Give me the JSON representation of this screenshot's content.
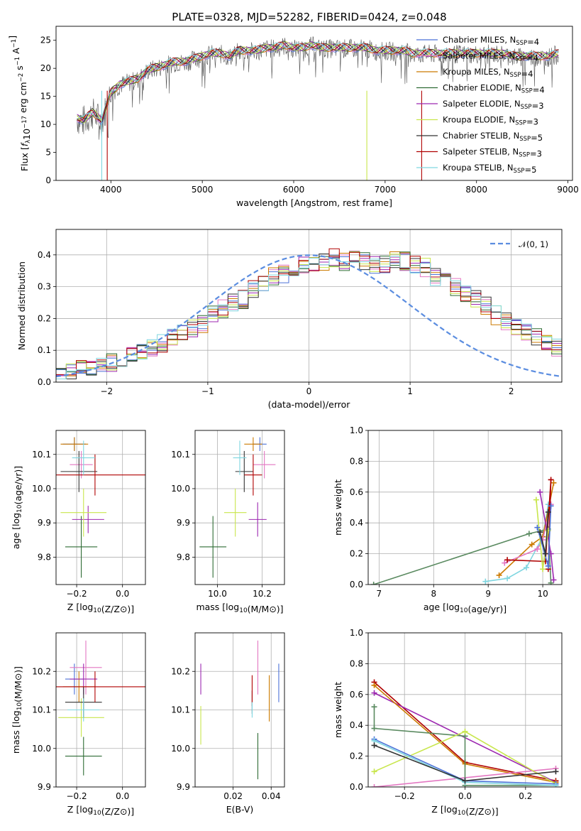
{
  "figure": {
    "title": "PLATE=0328, MJD=52282, FIBERID=0424, z=0.048"
  },
  "colors": {
    "Chabrier MILES": "#4c72d8",
    "Salpeter MILES": "#e377c2",
    "Kroupa MILES": "#cc7a00",
    "Chabrier ELODIE": "#2e6b34",
    "Salpeter ELODIE": "#9c27b0",
    "Kroupa ELODIE": "#c8e64c",
    "Chabrier STELIB": "#333333",
    "Salpeter STELIB": "#b00000",
    "Kroupa STELIB": "#7fd6e0",
    "normal": "#5b8de0",
    "green_path": "#5a8a60"
  },
  "chart_data": [
    {
      "id": "spectrum",
      "type": "line",
      "xlabel": "wavelength [Angstrom, rest frame]",
      "ylabel": "Flux [fλ10⁻¹⁷ erg cm⁻² s⁻¹ A⁻¹]",
      "xlim": [
        3400,
        9050
      ],
      "ylim": [
        0,
        27.5
      ],
      "xticks": [
        4000,
        5000,
        6000,
        7000,
        8000,
        9000
      ],
      "yticks": [
        0,
        5,
        10,
        15,
        20,
        25
      ],
      "legend_position": "top-right",
      "x": [
        3630,
        3700,
        3800,
        3900,
        3960,
        4000,
        4100,
        4200,
        4300,
        4400,
        4500,
        4600,
        4700,
        4800,
        4900,
        5000,
        5100,
        5200,
        5300,
        5400,
        5500,
        5600,
        5700,
        5800,
        5900,
        6000,
        6100,
        6200,
        6300,
        6400,
        6500,
        6600,
        6700,
        6800,
        6900,
        7000,
        7100,
        7200,
        7300,
        7400,
        7500,
        7600,
        7700,
        7800,
        7900,
        8000,
        8100,
        8200,
        8300,
        8400,
        8500,
        8600,
        8700,
        8800,
        8900
      ],
      "series": [
        {
          "name": "Chabrier MILES, N_SSP=4"
        },
        {
          "name": "Salpeter MILES, N_SSP=4"
        },
        {
          "name": "Kroupa MILES, N_SSP=4"
        },
        {
          "name": "Chabrier ELODIE, N_SSP=4"
        },
        {
          "name": "Salpeter ELODIE, N_SSP=3"
        },
        {
          "name": "Kroupa ELODIE, N_SSP=3"
        },
        {
          "name": "Chabrier STELIB, N_SSP=5"
        },
        {
          "name": "Salpeter STELIB, N_SSP=3"
        },
        {
          "name": "Kroupa STELIB, N_SSP=5"
        }
      ],
      "model_values": [
        11.0,
        10.5,
        12.0,
        10.5,
        13.5,
        15.5,
        17.0,
        17.5,
        18.0,
        19.5,
        20.0,
        20.5,
        21.0,
        21.0,
        21.5,
        22.0,
        22.5,
        22.5,
        22.0,
        23.0,
        23.0,
        23.0,
        23.5,
        23.5,
        24.0,
        23.5,
        23.5,
        24.0,
        23.5,
        23.5,
        23.5,
        23.5,
        23.5,
        23.5,
        23.0,
        23.0,
        23.0,
        23.0,
        22.5,
        22.5,
        22.5,
        22.5,
        22.5,
        22.5,
        22.5,
        22.5,
        22.5,
        22.5,
        22.5,
        22.0,
        22.0,
        22.0,
        22.0,
        22.0,
        22.5
      ]
    },
    {
      "id": "residuals",
      "type": "bar",
      "xlabel": "(data-model)/error",
      "ylabel": "Normed distribution",
      "xlim": [
        -2.5,
        2.5
      ],
      "ylim": [
        0,
        0.48
      ],
      "xticks": [
        -2,
        -1,
        0,
        1,
        2
      ],
      "yticks": [
        0.0,
        0.1,
        0.2,
        0.3,
        0.4
      ],
      "grid": true,
      "legend": "𝒩(0, 1)",
      "legend_position": "top-right",
      "bin_width": 0.1,
      "bin_start": -2.5,
      "hist_values": [
        0.03,
        0.03,
        0.04,
        0.05,
        0.05,
        0.06,
        0.07,
        0.08,
        0.1,
        0.11,
        0.12,
        0.14,
        0.15,
        0.17,
        0.18,
        0.21,
        0.23,
        0.25,
        0.26,
        0.29,
        0.31,
        0.33,
        0.34,
        0.36,
        0.37,
        0.37,
        0.38,
        0.39,
        0.38,
        0.39,
        0.38,
        0.37,
        0.37,
        0.38,
        0.38,
        0.37,
        0.36,
        0.33,
        0.32,
        0.3,
        0.28,
        0.26,
        0.24,
        0.21,
        0.19,
        0.17,
        0.16,
        0.14,
        0.12,
        0.11
      ]
    },
    {
      "id": "age-vs-Z",
      "type": "scatter",
      "xlabel": "Z [log10(Z/Z⊙)]",
      "ylabel": "age  [log10(age/yr)]",
      "xlim": [
        -0.29,
        0.1
      ],
      "ylim": [
        9.72,
        10.17
      ],
      "xticks": [
        -0.2,
        0.0
      ],
      "yticks": [
        9.8,
        9.9,
        10.0,
        10.1
      ],
      "grid": true,
      "points": [
        {
          "s": 0,
          "x": -0.21,
          "y": 10.13,
          "xerr": 0.05,
          "yerr": 0.02
        },
        {
          "s": 1,
          "x": -0.18,
          "y": 10.07,
          "xerr": 0.05,
          "yerr": 0.04
        },
        {
          "s": 2,
          "x": -0.21,
          "y": 10.13,
          "xerr": 0.06,
          "yerr": 0.02
        },
        {
          "s": 3,
          "x": -0.18,
          "y": 9.83,
          "xerr": 0.07,
          "yerr": 0.09
        },
        {
          "s": 4,
          "x": -0.15,
          "y": 9.91,
          "xerr": 0.07,
          "yerr": 0.04
        },
        {
          "s": 5,
          "x": -0.17,
          "y": 9.93,
          "xerr": 0.1,
          "yerr": 0.07
        },
        {
          "s": 6,
          "x": -0.19,
          "y": 10.05,
          "xerr": 0.08,
          "yerr": 0.06
        },
        {
          "s": 7,
          "x": -0.12,
          "y": 10.04,
          "xerr": 0.22,
          "yerr": 0.06
        },
        {
          "s": 8,
          "x": -0.17,
          "y": 10.09,
          "xerr": 0.05,
          "yerr": 0.05
        }
      ]
    },
    {
      "id": "age-vs-mass",
      "type": "scatter",
      "xlabel": "mass [log10(M/M⊙)]",
      "ylabel": "",
      "xlim": [
        9.9,
        10.3
      ],
      "ylim": [
        9.72,
        10.17
      ],
      "xticks": [
        10.0,
        10.2
      ],
      "yticks": [
        9.8,
        9.9,
        10.0,
        10.1
      ],
      "grid": true,
      "points": [
        {
          "s": 0,
          "x": 10.19,
          "y": 10.13,
          "xerr": 0.03,
          "yerr": 0.02
        },
        {
          "s": 1,
          "x": 10.21,
          "y": 10.07,
          "xerr": 0.05,
          "yerr": 0.04
        },
        {
          "s": 2,
          "x": 10.16,
          "y": 10.13,
          "xerr": 0.04,
          "yerr": 0.02
        },
        {
          "s": 3,
          "x": 9.98,
          "y": 9.83,
          "xerr": 0.06,
          "yerr": 0.09
        },
        {
          "s": 4,
          "x": 10.18,
          "y": 9.91,
          "xerr": 0.04,
          "yerr": 0.05
        },
        {
          "s": 5,
          "x": 10.08,
          "y": 9.93,
          "xerr": 0.05,
          "yerr": 0.07
        },
        {
          "s": 6,
          "x": 10.12,
          "y": 10.05,
          "xerr": 0.04,
          "yerr": 0.06
        },
        {
          "s": 7,
          "x": 10.16,
          "y": 10.04,
          "xerr": 0.04,
          "yerr": 0.06
        },
        {
          "s": 8,
          "x": 10.1,
          "y": 10.09,
          "xerr": 0.03,
          "yerr": 0.05
        }
      ]
    },
    {
      "id": "mass-weight-vs-age",
      "type": "line",
      "xlabel": "age  [log10(age/yr)]",
      "ylabel": "mass weight",
      "xlim": [
        6.8,
        10.35
      ],
      "ylim": [
        0,
        1.0
      ],
      "xticks": [
        7,
        8,
        9,
        10
      ],
      "yticks": [
        0.0,
        0.2,
        0.4,
        0.6,
        0.8,
        1.0
      ],
      "grid": true,
      "series": [
        {
          "s": 3,
          "x": [
            6.9,
            9.75,
            10.1,
            10.15
          ],
          "y": [
            0.0,
            0.33,
            0.36,
            0.01
          ]
        },
        {
          "s": 8,
          "x": [
            8.95,
            9.35,
            9.7,
            10.0,
            10.1
          ],
          "y": [
            0.02,
            0.04,
            0.11,
            0.31,
            0.52
          ]
        },
        {
          "s": 2,
          "x": [
            9.2,
            9.8,
            10.0,
            10.2
          ],
          "y": [
            0.06,
            0.26,
            0.31,
            0.66
          ]
        },
        {
          "s": 1,
          "x": [
            9.3,
            9.9,
            10.0,
            10.15
          ],
          "y": [
            0.14,
            0.23,
            0.29,
            0.52
          ]
        },
        {
          "s": 7,
          "x": [
            9.35,
            10.05,
            10.15,
            10.1
          ],
          "y": [
            0.16,
            0.15,
            0.68,
            0.1
          ]
        },
        {
          "s": 4,
          "x": [
            9.95,
            10.15,
            10.2
          ],
          "y": [
            0.6,
            0.2,
            0.03
          ]
        },
        {
          "s": 5,
          "x": [
            9.88,
            10.0,
            10.1
          ],
          "y": [
            0.55,
            0.1,
            0.35
          ]
        },
        {
          "s": 0,
          "x": [
            9.9,
            10.1,
            10.15
          ],
          "y": [
            0.37,
            0.12,
            0.51
          ]
        },
        {
          "s": 6,
          "x": [
            9.95,
            10.05,
            10.1
          ],
          "y": [
            0.34,
            0.2,
            0.47
          ]
        }
      ]
    },
    {
      "id": "mass-vs-Z",
      "type": "scatter",
      "xlabel": "Z [log10(Z/Z⊙)]",
      "ylabel": "mass [log10(M/M⊙)]",
      "xlim": [
        -0.29,
        0.1
      ],
      "ylim": [
        9.9,
        10.3
      ],
      "xticks": [
        -0.2,
        0.0
      ],
      "yticks": [
        9.9,
        10.0,
        10.1,
        10.2
      ],
      "grid": true,
      "points": [
        {
          "s": 0,
          "x": -0.21,
          "y": 10.18,
          "xerr": 0.04,
          "yerr": 0.04
        },
        {
          "s": 1,
          "x": -0.16,
          "y": 10.21,
          "xerr": 0.07,
          "yerr": 0.07
        },
        {
          "s": 2,
          "x": -0.19,
          "y": 10.16,
          "xerr": 0.07,
          "yerr": 0.04
        },
        {
          "s": 3,
          "x": -0.17,
          "y": 9.98,
          "xerr": 0.08,
          "yerr": 0.05
        },
        {
          "s": 4,
          "x": -0.17,
          "y": 10.18,
          "xerr": 0.06,
          "yerr": 0.04
        },
        {
          "s": 5,
          "x": -0.18,
          "y": 10.08,
          "xerr": 0.1,
          "yerr": 0.05
        },
        {
          "s": 6,
          "x": -0.17,
          "y": 10.12,
          "xerr": 0.08,
          "yerr": 0.04
        },
        {
          "s": 7,
          "x": -0.12,
          "y": 10.16,
          "xerr": 0.22,
          "yerr": 0.04
        },
        {
          "s": 8,
          "x": -0.17,
          "y": 10.1,
          "xerr": 0.07,
          "yerr": 0.03
        }
      ]
    },
    {
      "id": "mass-vs-EBV",
      "type": "scatter",
      "xlabel": "E(B-V)",
      "ylabel": "",
      "xlim": [
        0.0,
        0.047
      ],
      "ylim": [
        9.9,
        10.3
      ],
      "xticks": [
        0.02,
        0.04
      ],
      "yticks": [
        9.9,
        10.0,
        10.1,
        10.2
      ],
      "grid": true,
      "points": [
        {
          "s": 0,
          "x": 0.044,
          "y": 10.17,
          "yerr": 0.05
        },
        {
          "s": 1,
          "x": 0.033,
          "y": 10.21,
          "yerr": 0.07
        },
        {
          "s": 2,
          "x": 0.039,
          "y": 10.13,
          "yerr": 0.06
        },
        {
          "s": 3,
          "x": 0.033,
          "y": 9.98,
          "yerr": 0.06
        },
        {
          "s": 4,
          "x": 0.003,
          "y": 10.18,
          "yerr": 0.04
        },
        {
          "s": 5,
          "x": 0.003,
          "y": 10.06,
          "yerr": 0.05
        },
        {
          "s": 6,
          "x": 0.03,
          "y": 10.12,
          "yerr": 0.03
        },
        {
          "s": 7,
          "x": 0.03,
          "y": 10.15,
          "yerr": 0.04
        },
        {
          "s": 8,
          "x": 0.03,
          "y": 10.1,
          "yerr": 0.02
        }
      ]
    },
    {
      "id": "mass-weight-vs-Z",
      "type": "line",
      "xlabel": "Z [log10(Z/Z⊙)]",
      "ylabel": "mass weight",
      "xlim": [
        -0.32,
        0.32
      ],
      "ylim": [
        0,
        1.0
      ],
      "xticks": [
        -0.2,
        0.0,
        0.2
      ],
      "yticks": [
        0.0,
        0.2,
        0.4,
        0.6,
        0.8,
        1.0
      ],
      "grid": true,
      "series": [
        {
          "s": 7,
          "x": [
            -0.3,
            0.0,
            0.3
          ],
          "y": [
            0.68,
            0.16,
            0.04
          ]
        },
        {
          "s": 4,
          "x": [
            -0.3,
            0.3
          ],
          "y": [
            0.61,
            0.03
          ]
        },
        {
          "s": 2,
          "x": [
            -0.3,
            0.0,
            0.3
          ],
          "y": [
            0.66,
            0.15,
            0.03
          ]
        },
        {
          "s": 1,
          "x": [
            -0.3,
            0.3
          ],
          "y": [
            0.0,
            0.12
          ]
        },
        {
          "s": 3,
          "x": [
            -0.3,
            -0.3,
            0.0,
            0.0,
            0.3
          ],
          "y": [
            0.52,
            0.38,
            0.33,
            0.01,
            0.01
          ]
        },
        {
          "s": 5,
          "x": [
            -0.3,
            0.0,
            0.3
          ],
          "y": [
            0.1,
            0.36,
            0.02
          ]
        },
        {
          "s": 0,
          "x": [
            -0.3,
            0.0,
            0.3
          ],
          "y": [
            0.31,
            0.04,
            0.02
          ]
        },
        {
          "s": 8,
          "x": [
            -0.3,
            0.0,
            0.3
          ],
          "y": [
            0.3,
            0.03,
            0.01
          ]
        },
        {
          "s": 6,
          "x": [
            -0.3,
            0.0,
            0.3
          ],
          "y": [
            0.27,
            0.04,
            0.1
          ]
        }
      ]
    }
  ]
}
